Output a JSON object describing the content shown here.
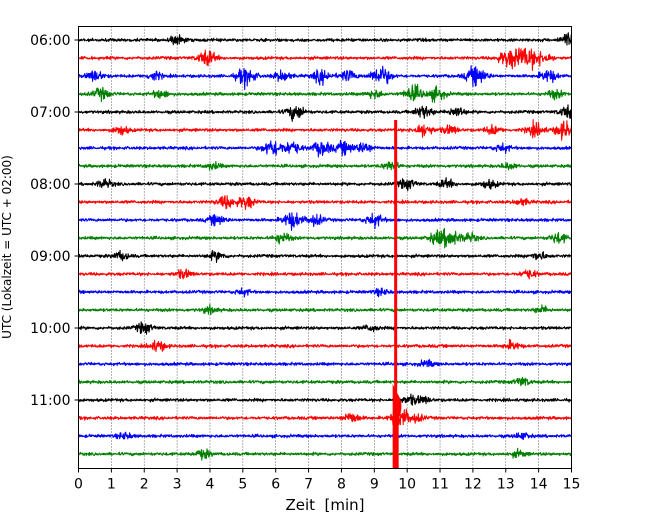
{
  "chart_data": {
    "type": "line",
    "title": "",
    "xlabel": "Zeit  [min]",
    "ylabel": "UTC (Lokalzeit = UTC + 02:00)",
    "xlim": [
      0,
      15
    ],
    "x_ticks": [
      "0",
      "1",
      "2",
      "3",
      "4",
      "5",
      "6",
      "7",
      "8",
      "9",
      "10",
      "11",
      "12",
      "13",
      "14",
      "15"
    ],
    "y_tick_labels": [
      "06:00",
      "07:00",
      "08:00",
      "09:00",
      "10:00",
      "11:00"
    ],
    "grid": "x",
    "colors": [
      "#000000",
      "#ff0000",
      "#0000ff",
      "#008000"
    ],
    "trace_interval_min": 15,
    "traces": [
      {
        "start": "06:00",
        "color": "#000000",
        "bursts": [
          [
            3.0,
            0.4
          ],
          [
            14.9,
            0.6
          ]
        ]
      },
      {
        "start": "06:15",
        "color": "#ff0000",
        "bursts": [
          [
            3.9,
            0.7
          ],
          [
            13.0,
            0.6
          ],
          [
            13.4,
            0.9
          ],
          [
            13.8,
            0.7
          ],
          [
            14.2,
            0.4
          ]
        ]
      },
      {
        "start": "06:30",
        "color": "#0000ff",
        "bursts": [
          [
            0.5,
            0.5
          ],
          [
            2.3,
            0.4
          ],
          [
            5.1,
            0.8
          ],
          [
            6.2,
            0.5
          ],
          [
            7.4,
            0.6
          ],
          [
            8.2,
            0.5
          ],
          [
            9.2,
            0.9
          ],
          [
            12.1,
            0.9
          ],
          [
            14.3,
            0.6
          ]
        ]
      },
      {
        "start": "06:45",
        "color": "#008000",
        "bursts": [
          [
            0.7,
            0.5
          ],
          [
            2.5,
            0.4
          ],
          [
            9.0,
            0.4
          ],
          [
            10.2,
            0.7
          ],
          [
            10.9,
            0.6
          ],
          [
            14.5,
            0.4
          ]
        ]
      },
      {
        "start": "07:00",
        "color": "#000000",
        "bursts": [
          [
            6.6,
            0.7
          ],
          [
            10.5,
            0.6
          ],
          [
            11.5,
            0.5
          ],
          [
            14.9,
            0.6
          ]
        ]
      },
      {
        "start": "07:15",
        "color": "#ff0000",
        "bursts": [
          [
            1.3,
            0.4
          ],
          [
            10.5,
            0.6
          ],
          [
            11.3,
            0.4
          ],
          [
            12.6,
            0.4
          ],
          [
            13.9,
            0.6
          ],
          [
            14.8,
            0.8
          ]
        ]
      },
      {
        "start": "07:30",
        "color": "#0000ff",
        "bursts": [
          [
            5.9,
            0.8
          ],
          [
            6.5,
            0.6
          ],
          [
            7.4,
            0.7
          ],
          [
            8.1,
            0.6
          ],
          [
            8.7,
            0.5
          ],
          [
            12.9,
            0.4
          ]
        ]
      },
      {
        "start": "07:45",
        "color": "#008000",
        "bursts": [
          [
            4.1,
            0.3
          ],
          [
            9.5,
            0.4
          ],
          [
            13.1,
            0.3
          ]
        ]
      },
      {
        "start": "08:00",
        "color": "#000000",
        "bursts": [
          [
            0.8,
            0.4
          ],
          [
            10.0,
            0.5
          ],
          [
            11.2,
            0.4
          ],
          [
            12.5,
            0.4
          ]
        ]
      },
      {
        "start": "08:15",
        "color": "#ff0000",
        "bursts": [
          [
            4.5,
            0.6
          ],
          [
            5.1,
            0.6
          ],
          [
            13.5,
            0.3
          ]
        ]
      },
      {
        "start": "08:30",
        "color": "#0000ff",
        "bursts": [
          [
            4.2,
            0.5
          ],
          [
            6.5,
            0.8
          ],
          [
            7.2,
            0.5
          ],
          [
            9.0,
            0.6
          ]
        ]
      },
      {
        "start": "08:45",
        "color": "#008000",
        "bursts": [
          [
            6.2,
            0.5
          ],
          [
            10.9,
            0.5
          ],
          [
            11.3,
            0.8
          ],
          [
            11.9,
            0.4
          ],
          [
            14.6,
            0.5
          ]
        ]
      },
      {
        "start": "09:00",
        "color": "#000000",
        "bursts": [
          [
            1.3,
            0.4
          ],
          [
            4.2,
            0.4
          ],
          [
            14.0,
            0.4
          ]
        ]
      },
      {
        "start": "09:15",
        "color": "#ff0000",
        "bursts": [
          [
            3.2,
            0.4
          ],
          [
            13.7,
            0.4
          ]
        ]
      },
      {
        "start": "09:30",
        "color": "#0000ff",
        "bursts": [
          [
            5.0,
            0.3
          ],
          [
            9.2,
            0.3
          ]
        ]
      },
      {
        "start": "09:45",
        "color": "#008000",
        "bursts": [
          [
            4.0,
            0.3
          ],
          [
            14.1,
            0.3
          ]
        ]
      },
      {
        "start": "10:00",
        "color": "#000000",
        "bursts": [
          [
            2.0,
            0.5
          ],
          [
            8.9,
            0.3
          ]
        ]
      },
      {
        "start": "10:15",
        "color": "#ff0000",
        "bursts": [
          [
            2.4,
            0.5
          ],
          [
            13.2,
            0.4
          ]
        ]
      },
      {
        "start": "10:30",
        "color": "#0000ff",
        "bursts": [
          [
            10.6,
            0.3
          ]
        ]
      },
      {
        "start": "10:45",
        "color": "#008000",
        "bursts": [
          [
            13.5,
            0.4
          ]
        ]
      },
      {
        "start": "11:00",
        "color": "#000000",
        "bursts": [
          [
            10.1,
            0.4
          ],
          [
            10.5,
            0.3
          ]
        ]
      },
      {
        "start": "11:15",
        "color": "#ff0000",
        "bursts": [
          [
            8.3,
            0.5
          ],
          [
            9.8,
            0.9
          ],
          [
            10.3,
            0.3
          ]
        ]
      },
      {
        "start": "11:30",
        "color": "#0000ff",
        "bursts": [
          [
            1.4,
            0.3
          ],
          [
            13.5,
            0.3
          ]
        ]
      },
      {
        "start": "11:45",
        "color": "#008000",
        "bursts": [
          [
            3.8,
            0.4
          ],
          [
            13.4,
            0.3
          ]
        ]
      }
    ],
    "event": {
      "color": "#ff0000",
      "time_min": 9.65,
      "start_trace": "07:15",
      "end_trace": "11:45"
    }
  }
}
